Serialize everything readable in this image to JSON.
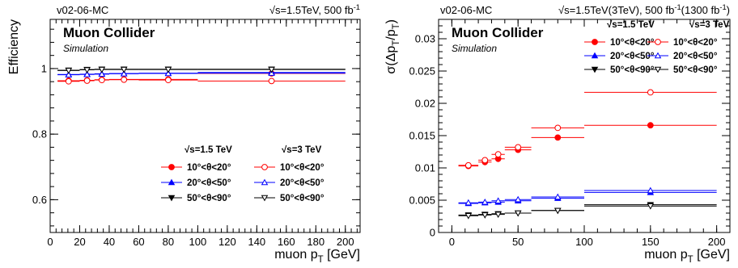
{
  "chart_data": [
    {
      "type": "scatter",
      "tag": "v02-06-MC",
      "energy_label": "√s=1.5TeV, 500 fb⁻¹",
      "title": "Muon Collider",
      "subtitle": "Simulation",
      "xlabel": "muon p_T [GeV]",
      "ylabel": "Efficiency",
      "xlim": [
        0,
        210
      ],
      "ylim": [
        0.5,
        1.15
      ],
      "xticks": [
        0,
        20,
        40,
        60,
        80,
        100,
        120,
        140,
        160,
        180,
        200
      ],
      "yticks": [
        0.6,
        0.8,
        1
      ],
      "ytick_labels": [
        "0.6",
        "0.8",
        "1"
      ],
      "grid": false,
      "legend_placement": "bottom-right",
      "legend_headers": [
        "√s=1.5 TeV",
        "√s=3 TeV"
      ],
      "bins": [
        [
          5,
          20
        ],
        [
          20,
          30
        ],
        [
          30,
          40
        ],
        [
          40,
          60
        ],
        [
          60,
          100
        ],
        [
          100,
          200
        ]
      ],
      "series": [
        {
          "name": "10°<θ<20°",
          "energy": "1.5 TeV",
          "color": "#ff0000",
          "marker": "circle",
          "filled": true,
          "x": [
            12.5,
            25,
            35,
            50,
            80,
            150
          ],
          "y": [
            0.963,
            0.964,
            0.966,
            0.967,
            0.967,
            0.985
          ]
        },
        {
          "name": "20°<θ<50°",
          "energy": "1.5 TeV",
          "color": "#0000ff",
          "marker": "triangle-up",
          "filled": true,
          "x": [
            12.5,
            25,
            35,
            50,
            80,
            150
          ],
          "y": [
            0.982,
            0.983,
            0.984,
            0.985,
            0.986,
            0.988
          ]
        },
        {
          "name": "50°<θ<90°",
          "energy": "1.5 TeV",
          "color": "#000000",
          "marker": "triangle-down",
          "filled": true,
          "x": [
            12.5,
            25,
            35,
            50,
            80,
            150
          ],
          "y": [
            0.995,
            0.997,
            0.998,
            0.998,
            0.998,
            0.998
          ]
        },
        {
          "name": "10°<θ<20°",
          "energy": "3 TeV",
          "color": "#ff0000",
          "marker": "circle",
          "filled": false,
          "x": [
            12.5,
            25,
            35,
            50,
            80,
            150
          ],
          "y": [
            0.961,
            0.963,
            0.965,
            0.966,
            0.965,
            0.962
          ]
        },
        {
          "name": "20°<θ<50°",
          "energy": "3 TeV",
          "color": "#0000ff",
          "marker": "triangle-up",
          "filled": false,
          "x": [
            12.5,
            25,
            35,
            50,
            80,
            150
          ],
          "y": [
            0.981,
            0.982,
            0.983,
            0.984,
            0.985,
            0.986
          ]
        },
        {
          "name": "50°<θ<90°",
          "energy": "3 TeV",
          "color": "#000000",
          "marker": "triangle-down",
          "filled": false,
          "x": [
            12.5,
            25,
            35,
            50,
            80,
            150
          ],
          "y": [
            0.994,
            0.996,
            0.997,
            0.997,
            0.997,
            0.997
          ]
        }
      ]
    },
    {
      "type": "scatter",
      "tag": "v02-06-MC",
      "energy_label": "√s=1.5TeV(3TeV), 500 fb⁻¹(1300 fb⁻¹)",
      "title": "Muon Collider",
      "subtitle": "Simulation",
      "xlabel": "muon p_T [GeV]",
      "ylabel": "σ(Δp_T/p_T)",
      "xlim": [
        -10,
        210
      ],
      "ylim": [
        0,
        0.033
      ],
      "xticks": [
        0,
        50,
        100,
        150,
        200
      ],
      "yticks": [
        0,
        0.005,
        0.01,
        0.015,
        0.02,
        0.025,
        0.03
      ],
      "ytick_labels": [
        "0",
        "0.005",
        "0.01",
        "0.015",
        "0.02",
        "0.025",
        "0.03"
      ],
      "grid": false,
      "legend_placement": "top-right",
      "legend_headers": [
        "√s=1.5 TeV",
        "√s=3 TeV"
      ],
      "bins": [
        [
          5,
          20
        ],
        [
          20,
          30
        ],
        [
          30,
          40
        ],
        [
          40,
          60
        ],
        [
          60,
          100
        ],
        [
          100,
          200
        ]
      ],
      "series": [
        {
          "name": "10°<θ<20°",
          "energy": "1.5 TeV",
          "color": "#ff0000",
          "marker": "circle",
          "filled": true,
          "x": [
            12.5,
            25,
            35,
            50,
            80,
            150
          ],
          "y": [
            0.0103,
            0.0109,
            0.0114,
            0.0128,
            0.0147,
            0.0166
          ]
        },
        {
          "name": "20°<θ<50°",
          "energy": "1.5 TeV",
          "color": "#0000ff",
          "marker": "triangle-up",
          "filled": true,
          "x": [
            12.5,
            25,
            35,
            50,
            80,
            150
          ],
          "y": [
            0.0045,
            0.0046,
            0.0047,
            0.0049,
            0.0053,
            0.0062
          ]
        },
        {
          "name": "50°<θ<90°",
          "energy": "1.5 TeV",
          "color": "#000000",
          "marker": "triangle-down",
          "filled": true,
          "x": [
            12.5,
            25,
            35,
            50,
            80,
            150
          ],
          "y": [
            0.0027,
            0.0028,
            0.0029,
            0.003,
            0.0034,
            0.0043
          ]
        },
        {
          "name": "10°<θ<20°",
          "energy": "3 TeV",
          "color": "#ff0000",
          "marker": "circle",
          "filled": false,
          "x": [
            12.5,
            25,
            35,
            50,
            80,
            150
          ],
          "y": [
            0.0104,
            0.0112,
            0.0121,
            0.0132,
            0.0162,
            0.0217
          ]
        },
        {
          "name": "20°<θ<50°",
          "energy": "3 TeV",
          "color": "#0000ff",
          "marker": "triangle-up",
          "filled": false,
          "x": [
            12.5,
            25,
            35,
            50,
            80,
            150
          ],
          "y": [
            0.0046,
            0.0047,
            0.0049,
            0.0051,
            0.0055,
            0.0065
          ]
        },
        {
          "name": "50°<θ<90°",
          "energy": "3 TeV",
          "color": "#000000",
          "marker": "triangle-down",
          "filled": false,
          "x": [
            12.5,
            25,
            35,
            50,
            80,
            150
          ],
          "y": [
            0.0026,
            0.0027,
            0.0028,
            0.003,
            0.0034,
            0.0041
          ]
        }
      ]
    }
  ]
}
